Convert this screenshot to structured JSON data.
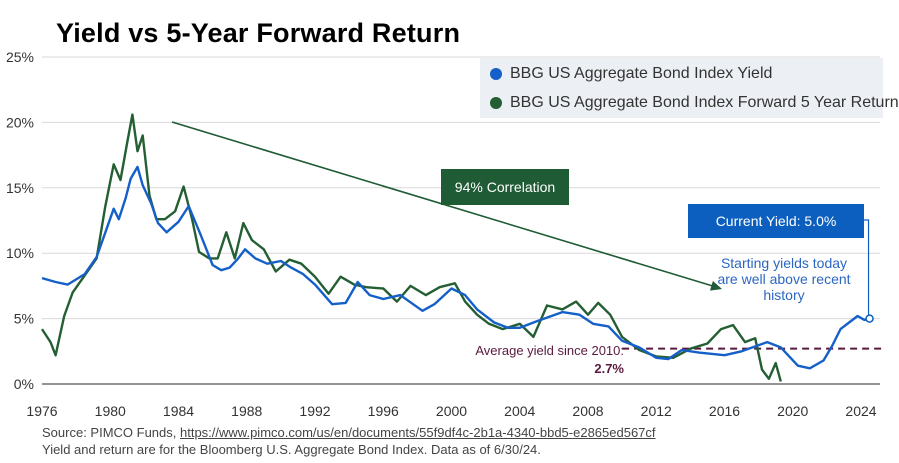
{
  "chart_data": {
    "type": "line",
    "title": "Yield vs 5-Year Forward Return",
    "xlabel": "",
    "ylabel": "",
    "xlim": [
      1976,
      2024.5
    ],
    "ylim": [
      0,
      25
    ],
    "yticks": [
      0,
      5,
      10,
      15,
      20,
      25
    ],
    "ytick_labels": [
      "0%",
      "5%",
      "10%",
      "15%",
      "20%",
      "25%"
    ],
    "xticks": [
      1976,
      1980,
      1984,
      1988,
      1992,
      1996,
      2000,
      2004,
      2008,
      2012,
      2016,
      2020,
      2024
    ],
    "xtick_labels": [
      "1976",
      "1980",
      "1984",
      "1988",
      "1992",
      "1996",
      "2000",
      "2004",
      "2008",
      "2012",
      "2016",
      "2020",
      "2024"
    ],
    "legend_position": "top-right",
    "series": [
      {
        "name": "BBG US Aggregate Bond Index Yield",
        "color": "#1560c8",
        "x": [
          1976,
          1976.8,
          1977.5,
          1978.5,
          1979.2,
          1979.8,
          1980.2,
          1980.5,
          1980.9,
          1981.2,
          1981.6,
          1981.9,
          1982.4,
          1982.8,
          1983.3,
          1984,
          1984.6,
          1985.3,
          1986,
          1986.5,
          1987,
          1987.5,
          1987.9,
          1988.5,
          1989.2,
          1990,
          1990.6,
          1991.3,
          1992,
          1993,
          1993.8,
          1994.5,
          1995.2,
          1996,
          1997,
          1998.3,
          1999,
          2000,
          2000.8,
          2001.5,
          2002.5,
          2003.3,
          2004,
          2005,
          2006.5,
          2007.5,
          2008.3,
          2009.2,
          2010,
          2011,
          2012,
          2012.7,
          2013.5,
          2014.5,
          2016,
          2017,
          2018.5,
          2019.3,
          2020.3,
          2021,
          2021.8,
          2022.3,
          2022.8,
          2023.3,
          2023.8,
          2024.2,
          2024.5
        ],
        "y": [
          8.1,
          7.8,
          7.6,
          8.4,
          9.7,
          11.9,
          13.4,
          12.6,
          14.2,
          15.7,
          16.6,
          15.2,
          13.8,
          12.3,
          11.6,
          12.4,
          13.6,
          11.4,
          9.1,
          8.7,
          8.9,
          9.6,
          10.3,
          9.6,
          9.2,
          9.4,
          8.9,
          8.4,
          7.6,
          6.1,
          6.2,
          7.8,
          6.8,
          6.5,
          6.8,
          5.6,
          6.1,
          7.3,
          6.8,
          5.7,
          4.7,
          4.3,
          4.3,
          4.8,
          5.5,
          5.3,
          4.6,
          4.4,
          3.3,
          2.8,
          2.0,
          1.9,
          2.6,
          2.4,
          2.2,
          2.5,
          3.2,
          2.8,
          1.4,
          1.2,
          1.8,
          2.9,
          4.2,
          4.7,
          5.2,
          4.9,
          5.0
        ]
      },
      {
        "name": "BBG US Aggregate Bond Index Forward 5 Year Return",
        "color": "#245f33",
        "x": [
          1976,
          1976.5,
          1976.8,
          1977.3,
          1977.8,
          1978.5,
          1979.2,
          1979.7,
          1980.2,
          1980.6,
          1981,
          1981.3,
          1981.6,
          1981.9,
          1982.3,
          1982.7,
          1983.2,
          1983.8,
          1984.3,
          1984.8,
          1985.2,
          1985.8,
          1986.3,
          1986.8,
          1987.3,
          1987.8,
          1988.3,
          1989,
          1989.7,
          1990.5,
          1991.2,
          1992,
          1992.8,
          1993.5,
          1994.3,
          1995,
          1996,
          1996.8,
          1997.6,
          1998.5,
          1999.3,
          2000.2,
          2000.8,
          2001.5,
          2002.2,
          2003,
          2004,
          2004.8,
          2005.6,
          2006.5,
          2007.3,
          2008,
          2008.6,
          2009.3,
          2010,
          2011,
          2012,
          2013,
          2014,
          2015,
          2015.8,
          2016.5,
          2017.2,
          2017.8,
          2018.2,
          2018.6,
          2019,
          2019.3
        ],
        "y": [
          4.2,
          3.2,
          2.2,
          5.2,
          7.0,
          8.3,
          9.6,
          13.5,
          16.8,
          15.6,
          18.5,
          20.6,
          17.8,
          19.0,
          14.4,
          12.6,
          12.6,
          13.2,
          15.1,
          12.6,
          10.1,
          9.6,
          9.6,
          11.6,
          9.6,
          12.3,
          11.0,
          10.3,
          8.6,
          9.5,
          9.2,
          8.2,
          6.9,
          8.2,
          7.6,
          7.4,
          7.3,
          6.3,
          7.5,
          6.8,
          7.4,
          7.7,
          6.3,
          5.3,
          4.6,
          4.2,
          4.6,
          3.6,
          6.0,
          5.7,
          6.3,
          5.3,
          6.2,
          5.3,
          3.6,
          2.6,
          2.1,
          2.0,
          2.7,
          3.1,
          4.2,
          4.5,
          3.2,
          3.5,
          1.1,
          0.4,
          1.6,
          0.2
        ]
      }
    ],
    "annotations": {
      "correlation": "94% Correlation",
      "current_yield": "Current Yield: 5.0%",
      "current_yield_value": 5.0,
      "starting_note": "Starting yields today are well above recent history",
      "average_label": "Average yield since 2010:",
      "average_value_label": "2.7%",
      "average_value": 2.7,
      "average_start_year": 2010
    }
  },
  "footer": {
    "source_prefix": "Source: PIMCO Funds, ",
    "source_link": "https://www.pimco.com/us/en/documents/55f9df4c-2b1a-4340-bbd5-e2865ed567cf",
    "note": "Yield and return are for the Bloomberg U.S. Aggregate Bond Index. Data as of 6/30/24."
  }
}
